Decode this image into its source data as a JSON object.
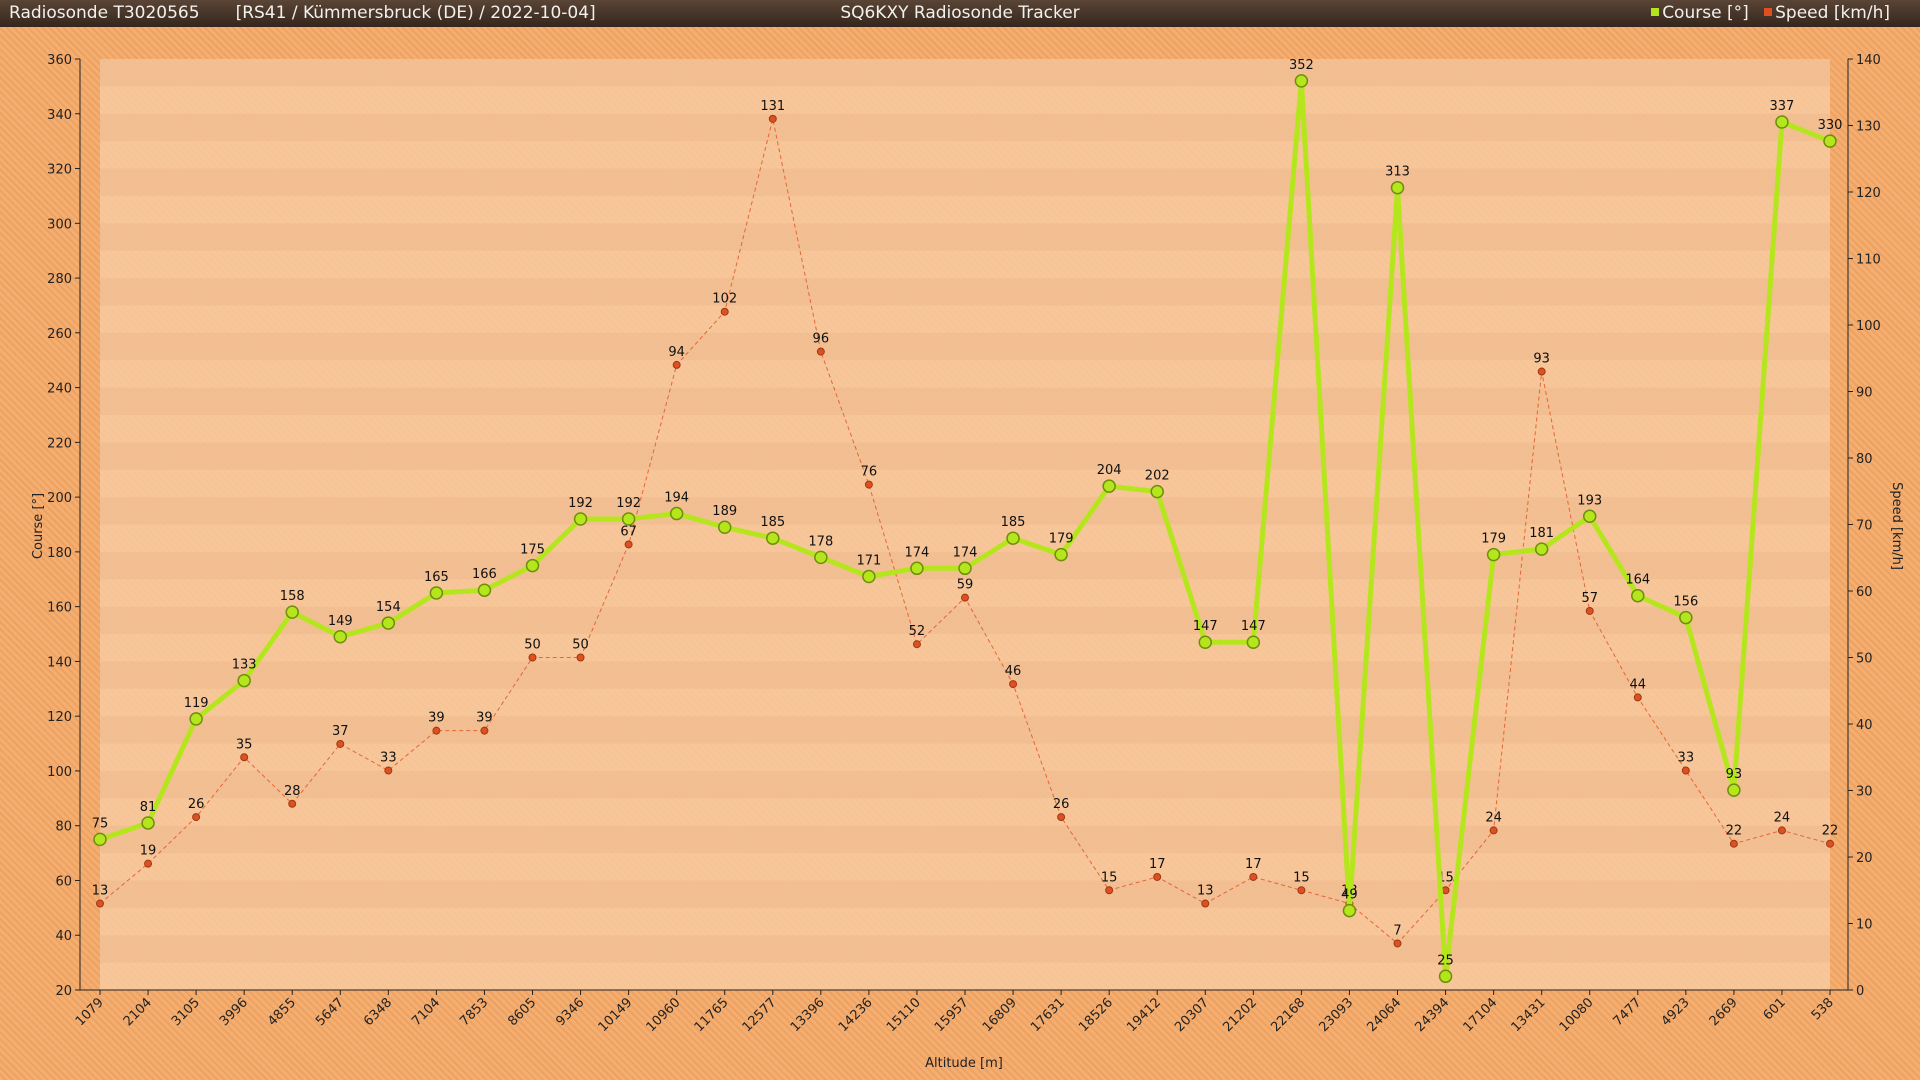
{
  "header": {
    "title_left": "Radiosonde T3020565",
    "subtitle": "[RS41 / Kümmersbruck (DE) / 2022-10-04]",
    "title_center": "SQ6KXY Radiosonde Tracker"
  },
  "colors": {
    "course": "#b5e61d",
    "speed": "#e04f1f",
    "band_light": "#f7caa0",
    "band_dark": "#efb98c",
    "axis": "#222222"
  },
  "chart_data": {
    "type": "line",
    "title": "SQ6KXY Radiosonde Tracker",
    "xlabel": "Altitude [m]",
    "ylabel": "Course [°]",
    "y2label": "Speed [km/h]",
    "categories": [
      "1079",
      "2104",
      "3105",
      "3996",
      "4855",
      "5647",
      "6348",
      "7104",
      "7853",
      "8605",
      "9346",
      "10149",
      "10960",
      "11765",
      "12577",
      "13396",
      "14236",
      "15110",
      "15957",
      "16809",
      "17631",
      "18526",
      "19412",
      "20307",
      "21202",
      "22168",
      "23093",
      "24064",
      "24394",
      "17104",
      "13431",
      "10080",
      "7477",
      "4923",
      "2669",
      "601",
      "538"
    ],
    "ylim": [
      20,
      360
    ],
    "y2lim": [
      0,
      140
    ],
    "yticks": [
      20,
      40,
      60,
      80,
      100,
      120,
      140,
      160,
      180,
      200,
      220,
      240,
      260,
      280,
      300,
      320,
      340,
      360
    ],
    "y2ticks": [
      0,
      10,
      20,
      30,
      40,
      50,
      60,
      70,
      80,
      90,
      100,
      110,
      120,
      130,
      140
    ],
    "legend_position": "top-right",
    "series": [
      {
        "name": "Course [°]",
        "axis": "left",
        "values": [
          75,
          81,
          119,
          133,
          158,
          149,
          154,
          165,
          166,
          175,
          192,
          192,
          194,
          189,
          185,
          178,
          171,
          174,
          174,
          185,
          179,
          204,
          202,
          147,
          147,
          352,
          49,
          313,
          25,
          179,
          181,
          193,
          164,
          156,
          93,
          337,
          330
        ]
      },
      {
        "name": "Speed [km/h]",
        "axis": "right",
        "values": [
          13,
          19,
          26,
          35,
          28,
          37,
          33,
          39,
          39,
          50,
          50,
          67,
          94,
          102,
          131,
          96,
          76,
          52,
          59,
          46,
          26,
          15,
          17,
          13,
          17,
          15,
          13,
          7,
          15,
          24,
          93,
          57,
          44,
          33,
          22,
          24,
          22
        ]
      }
    ]
  }
}
